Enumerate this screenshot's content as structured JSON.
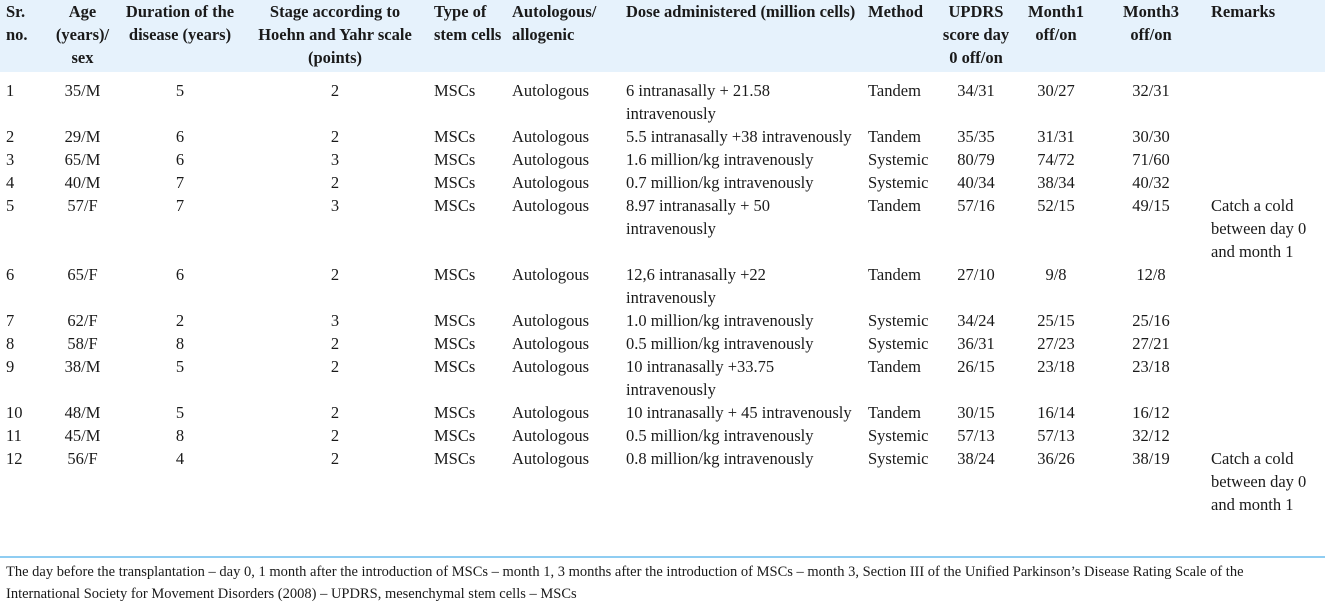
{
  "table": {
    "headers": [
      "Sr. no.",
      "Age (years)/ sex",
      "Duration of the disease (years)",
      "Stage according to Hoehn and Yahr scale (points)",
      "Type of stem cells",
      "Autologous/ allogenic",
      "Dose administered (million cells)",
      "Method",
      "UPDRS score day 0 off/on",
      "Month1 off/on",
      "Month3 off/on",
      "Remarks"
    ],
    "rows": [
      [
        "1",
        "35/M",
        "5",
        "2",
        "MSCs",
        "Autologous",
        "6 intranasally + 21.58 intravenously",
        "Tandem",
        "34/31",
        "30/27",
        "32/31",
        ""
      ],
      [
        "2",
        "29/M",
        "6",
        "2",
        "MSCs",
        "Autologous",
        "5.5 intranasally +38 intravenously",
        "Tandem",
        "35/35",
        "31/31",
        "30/30",
        ""
      ],
      [
        "3",
        "65/M",
        "6",
        "3",
        "MSCs",
        "Autologous",
        "1.6 million/kg intravenously",
        "Systemic",
        "80/79",
        "74/72",
        "71/60",
        ""
      ],
      [
        "4",
        "40/M",
        "7",
        "2",
        "MSCs",
        "Autologous",
        "0.7 million/kg intravenously",
        "Systemic",
        "40/34",
        "38/34",
        "40/32",
        ""
      ],
      [
        "5",
        "57/F",
        "7",
        "3",
        "MSCs",
        "Autologous",
        "8.97 intranasally + 50 intravenously",
        "Tandem",
        "57/16",
        "52/15",
        "49/15",
        "Catch a cold between day 0 and month 1"
      ],
      [
        "6",
        "65/F",
        "6",
        "2",
        "MSCs",
        "Autologous",
        "12,6 intranasally +22 intravenously",
        "Tandem",
        "27/10",
        "9/8",
        "12/8",
        ""
      ],
      [
        "7",
        "62/F",
        "2",
        "3",
        "MSCs",
        "Autologous",
        "1.0 million/kg intravenously",
        "Systemic",
        "34/24",
        "25/15",
        "25/16",
        ""
      ],
      [
        "8",
        "58/F",
        "8",
        "2",
        "MSCs",
        "Autologous",
        "0.5 million/kg intravenously",
        "Systemic",
        "36/31",
        "27/23",
        "27/21",
        ""
      ],
      [
        "9",
        "38/M",
        "5",
        "2",
        "MSCs",
        "Autologous",
        "10 intranasally +33.75 intravenously",
        "Tandem",
        "26/15",
        "23/18",
        "23/18",
        ""
      ],
      [
        "10",
        "48/M",
        "5",
        "2",
        "MSCs",
        "Autologous",
        "10 intranasally + 45 intravenously",
        "Tandem",
        "30/15",
        "16/14",
        "16/12",
        ""
      ],
      [
        "11",
        "45/M",
        "8",
        "2",
        "MSCs",
        "Autologous",
        "0.5 million/kg intravenously",
        "Systemic",
        "57/13",
        "57/13",
        "32/12",
        ""
      ],
      [
        "12",
        "56/F",
        "4",
        "2",
        "MSCs",
        "Autologous",
        "0.8 million/kg intravenously",
        "Systemic",
        "38/24",
        "36/26",
        "38/19",
        "Catch a cold between day 0 and month 1"
      ]
    ]
  },
  "footnote": "The day before the transplantation – day 0, 1 month after the introduction of MSCs – month 1, 3 months after the introduction of MSCs – month 3, Section III of the Unified Parkinson’s Disease Rating Scale of the International Society for Movement Disorders (2008) – UPDRS, mesenchymal stem cells – MSCs",
  "colors": {
    "header_bg": "#e6f2fc",
    "rule": "#8fcdf2"
  }
}
